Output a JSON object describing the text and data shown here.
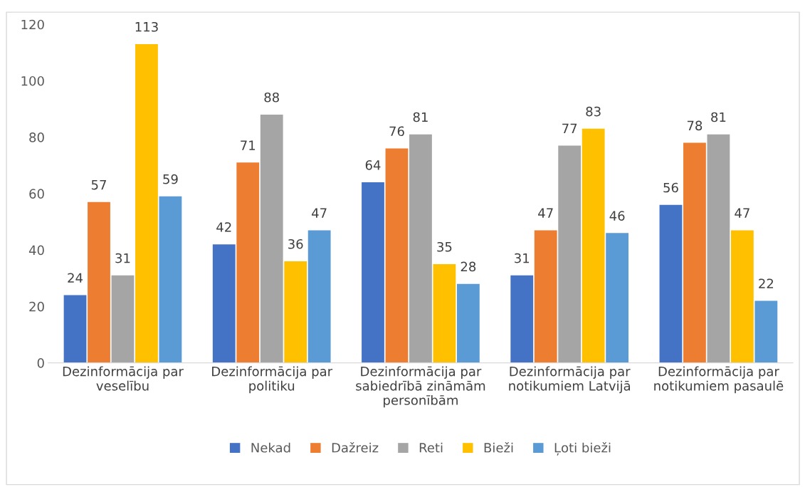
{
  "chart_data": {
    "type": "bar",
    "categories": [
      "Dezinformācija par veselību",
      "Dezinformācija par politiku",
      "Dezinformācija par sabiedrībā zināmām personībām",
      "Dezinformācija par notikumiem Latvijā",
      "Dezinformācija par notikumiem pasaulē"
    ],
    "series": [
      {
        "name": "Nekad",
        "color": "#4472c4",
        "values": [
          24,
          42,
          64,
          31,
          56
        ]
      },
      {
        "name": "Dažreiz",
        "color": "#ed7d31",
        "values": [
          57,
          71,
          76,
          47,
          78
        ]
      },
      {
        "name": "Reti",
        "color": "#a5a5a5",
        "values": [
          31,
          88,
          81,
          77,
          81
        ]
      },
      {
        "name": "Bieži",
        "color": "#ffc000",
        "values": [
          113,
          36,
          35,
          83,
          47
        ]
      },
      {
        "name": "Ļoti bieži",
        "color": "#5b9bd5",
        "values": [
          59,
          47,
          28,
          46,
          22
        ]
      }
    ],
    "ylim": [
      0,
      120
    ],
    "yticks": [
      0,
      20,
      40,
      60,
      80,
      100,
      120
    ],
    "data_labels": true,
    "grid": false,
    "legend": "bottom"
  }
}
